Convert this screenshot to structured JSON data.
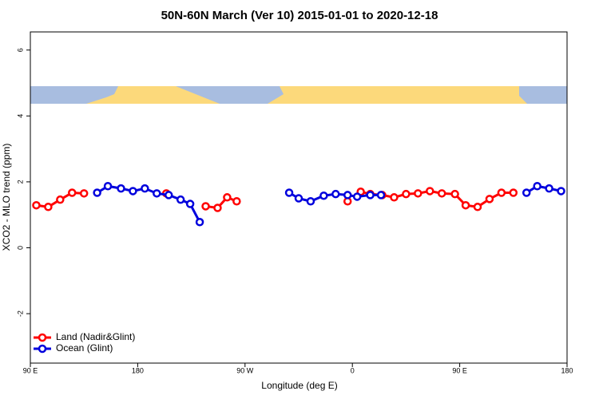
{
  "chart_data": {
    "type": "line",
    "title": "50N-60N March (Ver 10)   2015-01-01 to 2020-12-18",
    "x_label": "Longitude (deg E)",
    "y_label": "XCO2 - MLO trend (ppm)",
    "xlim": [
      90,
      540
    ],
    "ylim": [
      -3.5,
      6.55
    ],
    "xticks": [
      {
        "value": 90,
        "label": "90 E"
      },
      180,
      {
        "value": 270,
        "label": "90 W"
      },
      {
        "value": 360,
        "label": "0"
      },
      {
        "value": 450,
        "label": "90 E"
      },
      {
        "value": 540,
        "label": "180"
      }
    ],
    "yticks": [
      -2,
      0,
      2,
      4,
      6
    ],
    "legend": "bottom-left",
    "series": [
      {
        "name": "Land (Nadir&Glint)",
        "color": "#ff0000",
        "x": [
          95,
          105,
          115,
          125,
          135,
          null,
          204,
          null,
          237,
          247,
          255,
          263,
          null,
          356,
          null,
          367,
          375,
          385,
          395,
          405,
          415,
          425,
          435,
          446,
          455,
          465,
          475,
          485,
          495
        ],
        "values": [
          1.29,
          1.24,
          1.46,
          1.67,
          1.65,
          null,
          1.65,
          null,
          1.26,
          1.21,
          1.53,
          1.41,
          null,
          1.41,
          null,
          1.7,
          1.63,
          1.6,
          1.53,
          1.63,
          1.65,
          1.72,
          1.65,
          1.63,
          1.29,
          1.24,
          1.48,
          1.67,
          1.67
        ]
      },
      {
        "name": "Ocean (Glint)",
        "color": "#0000dd",
        "x": [
          146,
          155,
          166,
          176,
          186,
          196,
          206,
          216,
          224,
          232,
          null,
          307,
          315,
          325,
          336,
          346,
          356,
          364,
          375,
          384,
          null,
          506,
          515,
          525,
          535
        ],
        "values": [
          1.67,
          1.87,
          1.8,
          1.72,
          1.8,
          1.65,
          1.6,
          1.46,
          1.33,
          0.78,
          null,
          1.67,
          1.5,
          1.41,
          1.58,
          1.63,
          1.6,
          1.55,
          1.6,
          1.6,
          null,
          1.67,
          1.87,
          1.8,
          1.72
        ]
      }
    ]
  }
}
